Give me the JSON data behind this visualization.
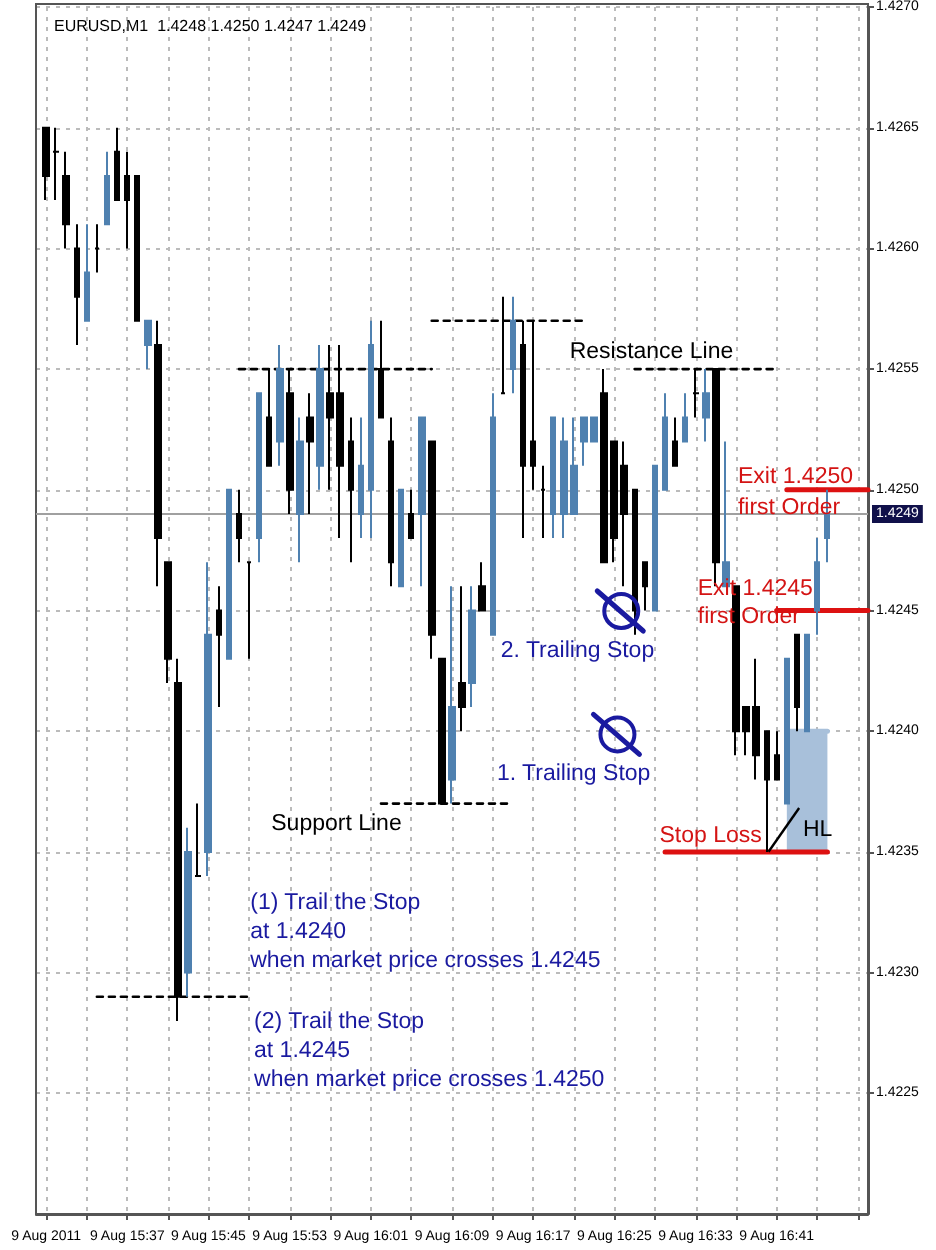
{
  "chart_data": {
    "type": "candlestick",
    "title": "EURUSD,M1  1.4248 1.4250 1.4247 1.4249",
    "x": [
      "2011-08-09T15:29",
      "2011-08-09T15:30",
      "2011-08-09T15:31",
      "2011-08-09T15:32",
      "2011-08-09T15:33",
      "2011-08-09T15:34",
      "2011-08-09T15:35",
      "2011-08-09T15:36",
      "2011-08-09T15:37",
      "2011-08-09T15:38",
      "2011-08-09T15:39",
      "2011-08-09T15:40",
      "2011-08-09T15:41",
      "2011-08-09T15:42",
      "2011-08-09T15:43",
      "2011-08-09T15:44",
      "2011-08-09T15:45",
      "2011-08-09T15:46",
      "2011-08-09T15:47",
      "2011-08-09T15:48",
      "2011-08-09T15:49",
      "2011-08-09T15:50",
      "2011-08-09T15:51",
      "2011-08-09T15:52",
      "2011-08-09T15:53",
      "2011-08-09T15:54",
      "2011-08-09T15:55",
      "2011-08-09T15:56",
      "2011-08-09T15:57",
      "2011-08-09T15:58",
      "2011-08-09T15:59",
      "2011-08-09T16:00",
      "2011-08-09T16:01",
      "2011-08-09T16:02",
      "2011-08-09T16:03",
      "2011-08-09T16:04",
      "2011-08-09T16:05",
      "2011-08-09T16:06",
      "2011-08-09T16:07",
      "2011-08-09T16:08",
      "2011-08-09T16:09",
      "2011-08-09T16:10",
      "2011-08-09T16:11",
      "2011-08-09T16:12",
      "2011-08-09T16:13",
      "2011-08-09T16:14",
      "2011-08-09T16:15",
      "2011-08-09T16:16",
      "2011-08-09T16:17",
      "2011-08-09T16:18",
      "2011-08-09T16:19",
      "2011-08-09T16:20",
      "2011-08-09T16:21",
      "2011-08-09T16:22",
      "2011-08-09T16:23",
      "2011-08-09T16:24",
      "2011-08-09T16:25",
      "2011-08-09T16:26",
      "2011-08-09T16:27",
      "2011-08-09T16:28",
      "2011-08-09T16:29",
      "2011-08-09T16:30",
      "2011-08-09T16:31",
      "2011-08-09T16:32",
      "2011-08-09T16:33",
      "2011-08-09T16:34",
      "2011-08-09T16:35",
      "2011-08-09T16:36",
      "2011-08-09T16:37",
      "2011-08-09T16:38",
      "2011-08-09T16:39",
      "2011-08-09T16:40",
      "2011-08-09T16:41",
      "2011-08-09T16:42",
      "2011-08-09T16:43",
      "2011-08-09T16:44",
      "2011-08-09T16:45",
      "2011-08-09T16:46"
    ],
    "ohlc": [
      [
        1.4265,
        1.4265,
        1.4262,
        1.4263
      ],
      [
        1.4264,
        1.4265,
        1.4262,
        1.4264
      ],
      [
        1.4263,
        1.4264,
        1.426,
        1.4261
      ],
      [
        1.426,
        1.4261,
        1.4256,
        1.4258
      ],
      [
        1.4257,
        1.4261,
        1.4257,
        1.4259
      ],
      [
        1.426,
        1.4261,
        1.4259,
        1.426
      ],
      [
        1.4261,
        1.4264,
        1.4261,
        1.4263
      ],
      [
        1.4264,
        1.4265,
        1.4262,
        1.4262
      ],
      [
        1.4263,
        1.4264,
        1.426,
        1.4262
      ],
      [
        1.4263,
        1.4263,
        1.4257,
        1.4257
      ],
      [
        1.4256,
        1.4257,
        1.4255,
        1.4257
      ],
      [
        1.4256,
        1.4257,
        1.4246,
        1.4248
      ],
      [
        1.4247,
        1.4247,
        1.4242,
        1.4243
      ],
      [
        1.4242,
        1.4243,
        1.4228,
        1.4229
      ],
      [
        1.423,
        1.4236,
        1.4229,
        1.4235
      ],
      [
        1.4234,
        1.4237,
        1.4234,
        1.4234
      ],
      [
        1.4235,
        1.4247,
        1.4234,
        1.4244
      ],
      [
        1.4245,
        1.4246,
        1.4241,
        1.4244
      ],
      [
        1.4243,
        1.425,
        1.4243,
        1.425
      ],
      [
        1.4249,
        1.425,
        1.4247,
        1.4248
      ],
      [
        1.4247,
        1.4247,
        1.4243,
        1.4247
      ],
      [
        1.4248,
        1.4254,
        1.4247,
        1.4254
      ],
      [
        1.4253,
        1.4255,
        1.4251,
        1.4251
      ],
      [
        1.4252,
        1.4256,
        1.4251,
        1.4255
      ],
      [
        1.4254,
        1.4255,
        1.4249,
        1.425
      ],
      [
        1.4249,
        1.4253,
        1.4247,
        1.4252
      ],
      [
        1.4253,
        1.4254,
        1.4249,
        1.4252
      ],
      [
        1.4251,
        1.4256,
        1.425,
        1.4255
      ],
      [
        1.4254,
        1.4256,
        1.425,
        1.4253
      ],
      [
        1.4254,
        1.4256,
        1.4248,
        1.4251
      ],
      [
        1.4252,
        1.4253,
        1.4247,
        1.425
      ],
      [
        1.4249,
        1.4253,
        1.4248,
        1.4251
      ],
      [
        1.425,
        1.4257,
        1.4248,
        1.4256
      ],
      [
        1.4255,
        1.4257,
        1.4253,
        1.4253
      ],
      [
        1.4252,
        1.4253,
        1.4246,
        1.4247
      ],
      [
        1.4246,
        1.425,
        1.4246,
        1.425
      ],
      [
        1.4249,
        1.425,
        1.4248,
        1.4248
      ],
      [
        1.4249,
        1.4253,
        1.4246,
        1.4253
      ],
      [
        1.4252,
        1.4252,
        1.4243,
        1.4244
      ],
      [
        1.4243,
        1.4243,
        1.4237,
        1.4237
      ],
      [
        1.4238,
        1.4246,
        1.4237,
        1.4241
      ],
      [
        1.4242,
        1.4246,
        1.424,
        1.4241
      ],
      [
        1.4242,
        1.4246,
        1.4241,
        1.4245
      ],
      [
        1.4246,
        1.4247,
        1.4245,
        1.4245
      ],
      [
        1.4244,
        1.4254,
        1.4244,
        1.4253
      ],
      [
        1.4254,
        1.4258,
        1.4254,
        1.4254
      ],
      [
        1.4255,
        1.4258,
        1.4254,
        1.4257
      ],
      [
        1.4256,
        1.4257,
        1.4248,
        1.4251
      ],
      [
        1.4252,
        1.4257,
        1.425,
        1.4251
      ],
      [
        1.425,
        1.4251,
        1.4248,
        1.425
      ],
      [
        1.4249,
        1.4253,
        1.4248,
        1.4253
      ],
      [
        1.4249,
        1.4253,
        1.4248,
        1.4252
      ],
      [
        1.4249,
        1.4253,
        1.4249,
        1.4251
      ],
      [
        1.4252,
        1.4253,
        1.4251,
        1.4253
      ],
      [
        1.4252,
        1.4253,
        1.4252,
        1.4253
      ],
      [
        1.4254,
        1.4255,
        1.4247,
        1.4247
      ],
      [
        1.4252,
        1.4252,
        1.4247,
        1.4248
      ],
      [
        1.4251,
        1.4252,
        1.4246,
        1.4249
      ],
      [
        1.425,
        1.425,
        1.4244,
        1.4245
      ],
      [
        1.4247,
        1.4247,
        1.4245,
        1.4246
      ],
      [
        1.4245,
        1.4251,
        1.4245,
        1.4251
      ],
      [
        1.425,
        1.4254,
        1.425,
        1.4253
      ],
      [
        1.4252,
        1.4253,
        1.4251,
        1.4251
      ],
      [
        1.4252,
        1.4254,
        1.4252,
        1.4253
      ],
      [
        1.4254,
        1.4255,
        1.4253,
        1.4254
      ],
      [
        1.4253,
        1.4255,
        1.4252,
        1.4254
      ],
      [
        1.4255,
        1.4255,
        1.4246,
        1.4247
      ],
      [
        1.4246,
        1.4252,
        1.4246,
        1.4247
      ],
      [
        1.4246,
        1.4246,
        1.4239,
        1.424
      ],
      [
        1.4241,
        1.4241,
        1.4239,
        1.424
      ],
      [
        1.4241,
        1.4243,
        1.4238,
        1.4239
      ],
      [
        1.424,
        1.424,
        1.4235,
        1.4238
      ],
      [
        1.4239,
        1.424,
        1.4238,
        1.4238
      ],
      [
        1.4237,
        1.4243,
        1.4237,
        1.4243
      ],
      [
        1.4244,
        1.4244,
        1.424,
        1.4241
      ],
      [
        1.424,
        1.4244,
        1.424,
        1.4244
      ],
      [
        1.4245,
        1.4248,
        1.4244,
        1.4247
      ],
      [
        1.4248,
        1.425,
        1.4247,
        1.4249
      ]
    ],
    "colors": [
      "#000000",
      "#000000",
      "#000000",
      "#000000",
      "#4f81b0",
      "#000000",
      "#4f81b0",
      "#000000",
      "#000000",
      "#000000",
      "#4f81b0",
      "#000000",
      "#000000",
      "#000000",
      "#4f81b0",
      "#000000",
      "#4f81b0",
      "#000000",
      "#4f81b0",
      "#000000",
      "#000000",
      "#4f81b0",
      "#000000",
      "#4f81b0",
      "#000000",
      "#4f81b0",
      "#000000",
      "#4f81b0",
      "#000000",
      "#000000",
      "#000000",
      "#4f81b0",
      "#4f81b0",
      "#000000",
      "#000000",
      "#4f81b0",
      "#000000",
      "#4f81b0",
      "#000000",
      "#000000",
      "#4f81b0",
      "#000000",
      "#4f81b0",
      "#000000",
      "#4f81b0",
      "#000000",
      "#4f81b0",
      "#000000",
      "#000000",
      "#000000",
      "#4f81b0",
      "#4f81b0",
      "#4f81b0",
      "#4f81b0",
      "#4f81b0",
      "#000000",
      "#000000",
      "#000000",
      "#000000",
      "#000000",
      "#4f81b0",
      "#4f81b0",
      "#000000",
      "#4f81b0",
      "#000000",
      "#4f81b0",
      "#000000",
      "#4f81b0",
      "#000000",
      "#000000",
      "#000000",
      "#000000",
      "#000000",
      "#4f81b0",
      "#000000",
      "#4f81b0",
      "#4f81b0",
      "#4f81b0"
    ],
    "series": [
      {
        "type": "line",
        "x": [
          "2011-08-09T16:42",
          "2011-08-09T16:46"
        ],
        "values": [
          1.424,
          1.424
        ],
        "lower": [
          1.4235,
          1.4235
        ],
        "upper": [
          1.424,
          1.424
        ],
        "color": "#a8c0da"
      },
      {
        "type": "line",
        "x": [
          "2011-08-09T15:34",
          "2011-08-09T15:49"
        ],
        "values": [
          1.4229,
          1.4229
        ],
        "color": "#000000",
        "line_style": "dashed"
      },
      {
        "type": "line",
        "x": [
          "2011-08-09T16:02",
          "2011-08-09T16:15"
        ],
        "values": [
          1.4237,
          1.4237
        ],
        "color": "#000000",
        "line_style": "dashed"
      },
      {
        "type": "line",
        "x": [
          "2011-08-09T15:48",
          "2011-08-09T16:07"
        ],
        "values": [
          1.4255,
          1.4255
        ],
        "color": "#000000",
        "line_style": "dashed"
      },
      {
        "type": "line",
        "x": [
          "2011-08-09T16:07",
          "2011-08-09T16:22"
        ],
        "values": [
          1.4257,
          1.4257
        ],
        "color": "#000000",
        "line_style": "dashed"
      },
      {
        "type": "line",
        "x": [
          "2011-08-09T16:27",
          "2011-08-09T16:41"
        ],
        "values": [
          1.4255,
          1.4255
        ],
        "color": "#000000",
        "line_style": "dashed"
      },
      {
        "type": "line",
        "x": [
          "2011-08-09T16:30",
          "2011-08-09T16:46"
        ],
        "values": [
          1.4235,
          1.4235
        ],
        "color": "#dd1111",
        "line_style": "solid"
      },
      {
        "type": "line",
        "x": [
          "2011-08-09T16:42",
          "2011-08-09T16:50"
        ],
        "values": [
          1.425,
          1.425
        ],
        "color": "#dd1111",
        "line_style": "solid"
      },
      {
        "type": "line",
        "x": [
          "2011-08-09T16:41",
          "2011-08-09T16:50"
        ],
        "values": [
          1.4245,
          1.4245
        ],
        "color": "#dd1111",
        "line_style": "solid"
      }
    ],
    "marker": "none",
    "ref_lines": [
      {
        "axis": "y",
        "value": 1.4249,
        "label": "1.4249",
        "color": "#a0a0a0"
      }
    ],
    "annotations": [
      "Resistance Line",
      "Exit 1.4250\nfirst Order",
      "Exit 1.4245\nfirst Order",
      "2. Trailing Stop",
      "1. Trailing Stop",
      "Support Line",
      "Stop Loss",
      "HL",
      "(1) Trail the Stop\nat 1.4240\nwhen market price crosses 1.4245",
      "(2) Trail the Stop\nat 1.4245\nwhen market price crosses 1.4250"
    ],
    "xlim": [
      "2011-08-09T15:28",
      "2011-08-09T16:50"
    ],
    "xticks": [
      {
        "value": "2011-08-09T15:29",
        "label": "9 Aug 2011"
      },
      {
        "value": "2011-08-09T15:33",
        "label": null
      },
      {
        "value": "2011-08-09T15:37",
        "label": "9 Aug 15:37"
      },
      {
        "value": "2011-08-09T15:41",
        "label": null
      },
      {
        "value": "2011-08-09T15:45",
        "label": "9 Aug 15:45"
      },
      {
        "value": "2011-08-09T15:49",
        "label": null
      },
      {
        "value": "2011-08-09T15:53",
        "label": "9 Aug 15:53"
      },
      {
        "value": "2011-08-09T15:57",
        "label": null
      },
      {
        "value": "2011-08-09T16:01",
        "label": "9 Aug 16:01"
      },
      {
        "value": "2011-08-09T16:05",
        "label": null
      },
      {
        "value": "2011-08-09T16:09",
        "label": "9 Aug 16:09"
      },
      {
        "value": "2011-08-09T16:13",
        "label": null
      },
      {
        "value": "2011-08-09T16:17",
        "label": "9 Aug 16:17"
      },
      {
        "value": "2011-08-09T16:21",
        "label": null
      },
      {
        "value": "2011-08-09T16:25",
        "label": "9 Aug 16:25"
      },
      {
        "value": "2011-08-09T16:29",
        "label": null
      },
      {
        "value": "2011-08-09T16:33",
        "label": "9 Aug 16:33"
      },
      {
        "value": "2011-08-09T16:37",
        "label": null
      },
      {
        "value": "2011-08-09T16:41",
        "label": "9 Aug 16:41"
      },
      {
        "value": "2011-08-09T16:45",
        "label": null
      },
      {
        "value": "2011-08-09T16:49",
        "label": null
      }
    ],
    "ylim": [
      1.422,
      1.427
    ],
    "yticks": [
      1.4225,
      {
        "value": 1.423,
        "label": "1.4230"
      },
      1.4235,
      {
        "value": 1.424,
        "label": "1.4240"
      },
      1.4245,
      {
        "value": 1.425,
        "label": "1.4250"
      },
      1.4255,
      {
        "value": 1.426,
        "label": "1.4260"
      },
      1.4265,
      {
        "value": 1.427,
        "label": "1.4270"
      }
    ],
    "grid": true
  }
}
